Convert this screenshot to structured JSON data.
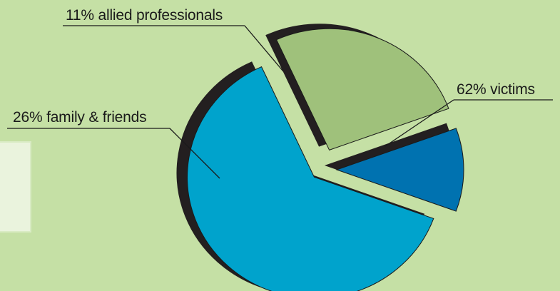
{
  "chart_data": {
    "type": "pie",
    "style": "3d-exploded",
    "title": "",
    "slices": [
      {
        "label": "62% victims",
        "value": 62,
        "color": "#00a3cc"
      },
      {
        "label": "26% family & friends",
        "value": 26,
        "color": "#9fc17b"
      },
      {
        "label": "11% allied professionals",
        "value": 11,
        "color": "#0072b0"
      }
    ],
    "depth_color": "#231f20",
    "background": "#c5e0a5"
  }
}
